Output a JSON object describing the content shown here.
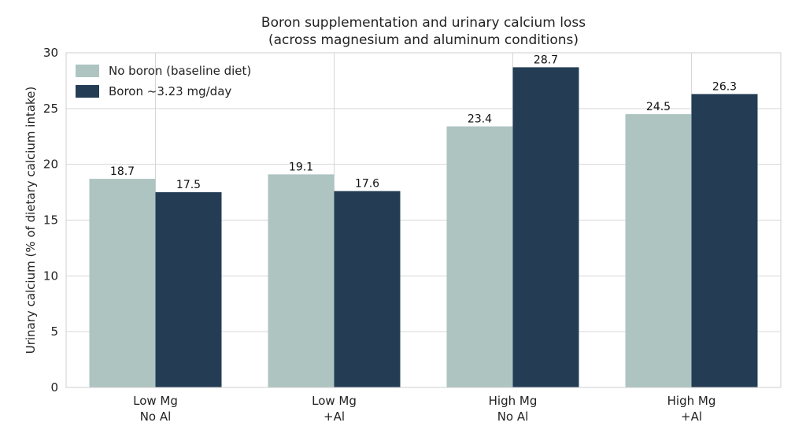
{
  "chart_data": {
    "type": "bar",
    "title": "Boron supplementation and urinary calcium loss",
    "subtitle": "(across magnesium and aluminum conditions)",
    "xlabel": "",
    "ylabel": "Urinary calcium (% of dietary calcium intake)",
    "ylim": [
      0,
      30
    ],
    "yticks": [
      0,
      5,
      10,
      15,
      20,
      25,
      30
    ],
    "grid": true,
    "legend_position": "top-left",
    "categories": [
      [
        "Low Mg",
        "No Al"
      ],
      [
        "Low Mg",
        "+Al"
      ],
      [
        "High Mg",
        "No Al"
      ],
      [
        "High Mg",
        "+Al"
      ]
    ],
    "series": [
      {
        "name": "No boron (baseline diet)",
        "color": "#adc4c1",
        "values": [
          18.7,
          19.1,
          23.4,
          24.5
        ],
        "labels": [
          "18.7",
          "19.1",
          "23.4",
          "24.5"
        ]
      },
      {
        "name": "Boron ~3.23 mg/day",
        "color": "#243d55",
        "values": [
          17.5,
          17.6,
          28.7,
          26.3
        ],
        "labels": [
          "17.5",
          "17.6",
          "28.7",
          "26.3"
        ]
      }
    ]
  }
}
